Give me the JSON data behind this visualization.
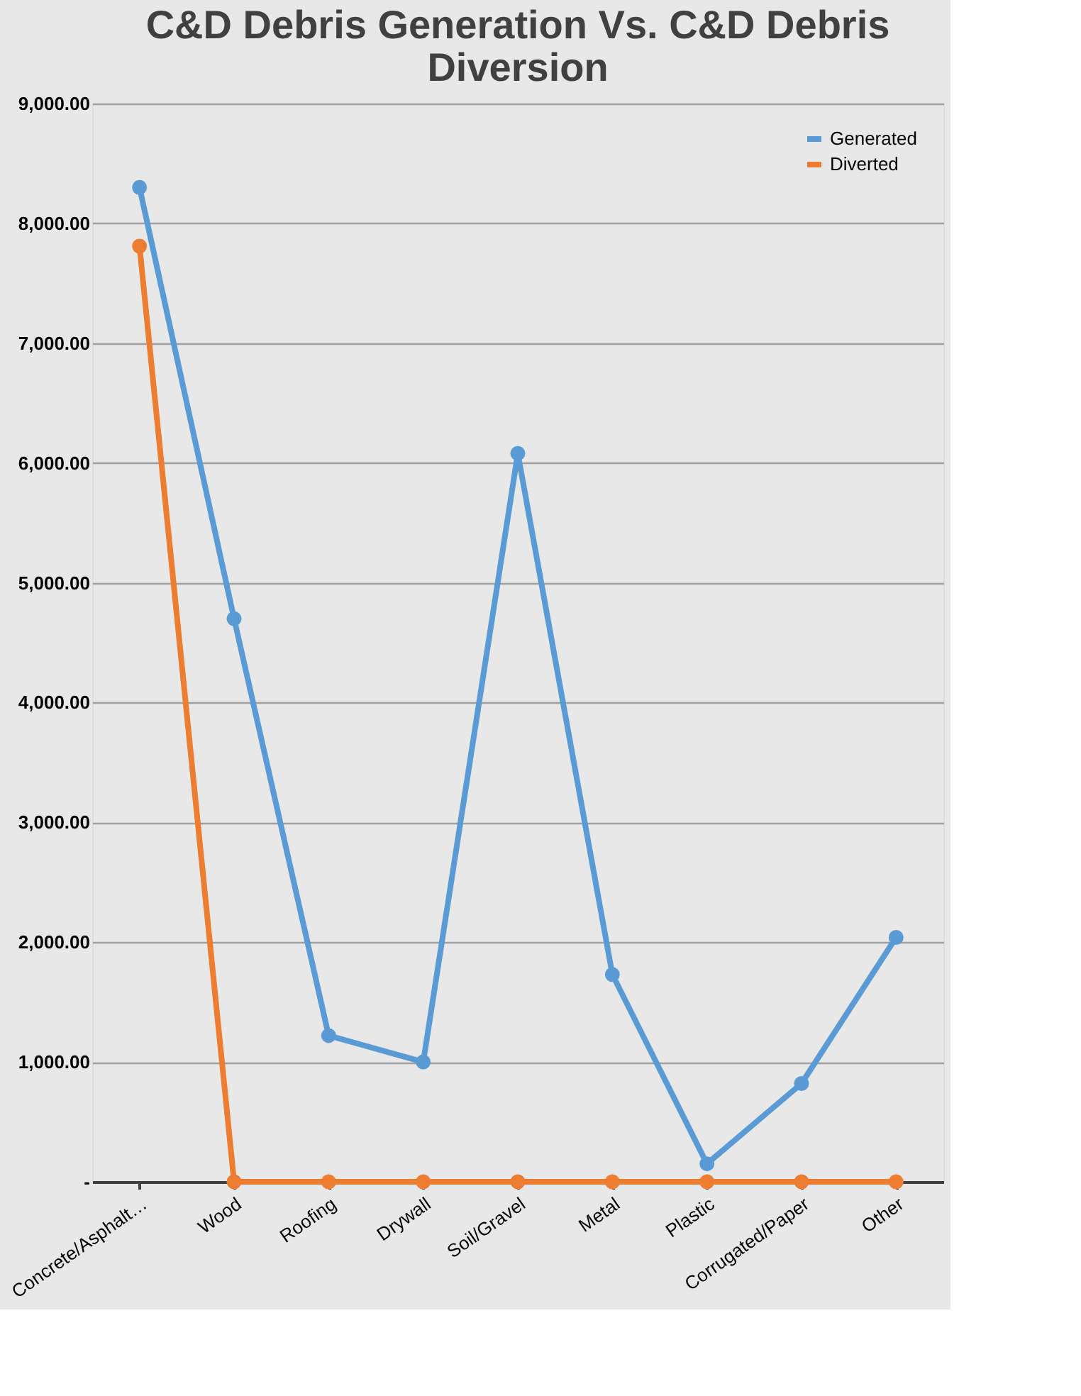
{
  "chart_data": {
    "type": "line",
    "title": [
      "C&D Debris Generation Vs. C&D Debris",
      "Diversion"
    ],
    "categories": [
      "Concrete/Asphalt…",
      "Wood",
      "Roofing",
      "Drywall",
      "Soil/Gravel",
      "Metal",
      "Plastic",
      "Corrugated/Paper",
      "Other"
    ],
    "series": [
      {
        "name": "Generated",
        "color": "#5b9bd5",
        "values": [
          8300,
          4700,
          1220,
          1000,
          6080,
          1730,
          150,
          820,
          2040
        ]
      },
      {
        "name": "Diverted",
        "color": "#ed7d31",
        "values": [
          7810,
          0,
          0,
          0,
          0,
          0,
          0,
          0,
          0
        ]
      }
    ],
    "ylim": [
      0,
      9000
    ],
    "yticks": [
      {
        "value": 0,
        "label": "-"
      },
      {
        "value": 1000,
        "label": "1,000.00"
      },
      {
        "value": 2000,
        "label": "2,000.00"
      },
      {
        "value": 3000,
        "label": "3,000.00"
      },
      {
        "value": 4000,
        "label": "4,000.00"
      },
      {
        "value": 5000,
        "label": "5,000.00"
      },
      {
        "value": 6000,
        "label": "6,000.00"
      },
      {
        "value": 7000,
        "label": "7,000.00"
      },
      {
        "value": 8000,
        "label": "8,000.00"
      },
      {
        "value": 9000,
        "label": "9,000.00"
      }
    ],
    "grid": "y",
    "legend": "top right",
    "marker": "circle",
    "line_style": "solid"
  }
}
